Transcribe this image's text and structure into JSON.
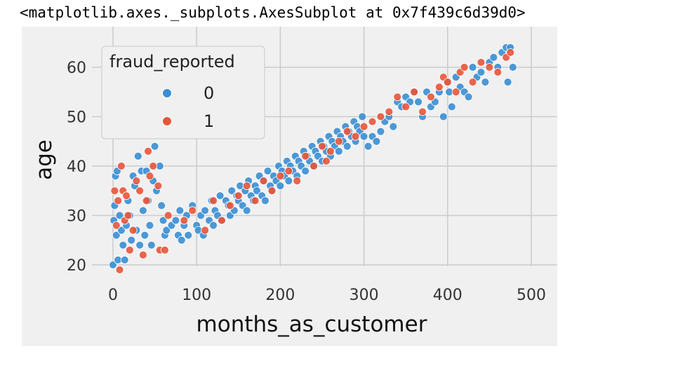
{
  "output_text": "<matplotlib.axes._subplots.AxesSubplot at 0x7f439c6d39d0>",
  "chart_data": {
    "type": "scatter",
    "title": "",
    "xlabel": "months_as_customer",
    "ylabel": "age",
    "xlim": [
      -20,
      500
    ],
    "ylim": [
      17,
      66
    ],
    "xticks": [
      0,
      100,
      200,
      300,
      400,
      500
    ],
    "yticks": [
      20,
      30,
      40,
      50,
      60
    ],
    "grid": true,
    "legend": {
      "title": "fraud_reported",
      "placement": "top-left",
      "entries": [
        "0",
        "1"
      ]
    },
    "colors": {
      "0": "#3a8ed3",
      "1": "#e8553a",
      "background": "#f0f0f0",
      "grid": "#cbcbcb"
    },
    "series": [
      {
        "name": "0",
        "points": [
          [
            0,
            20
          ],
          [
            1,
            29
          ],
          [
            2,
            32
          ],
          [
            3,
            38
          ],
          [
            4,
            26
          ],
          [
            5,
            39
          ],
          [
            6,
            21
          ],
          [
            8,
            30
          ],
          [
            10,
            27
          ],
          [
            12,
            24
          ],
          [
            14,
            21
          ],
          [
            16,
            28
          ],
          [
            18,
            33
          ],
          [
            20,
            30
          ],
          [
            22,
            25
          ],
          [
            24,
            38
          ],
          [
            26,
            36
          ],
          [
            28,
            27
          ],
          [
            30,
            42
          ],
          [
            32,
            24
          ],
          [
            34,
            39
          ],
          [
            36,
            31
          ],
          [
            38,
            26
          ],
          [
            40,
            39
          ],
          [
            42,
            33
          ],
          [
            44,
            28
          ],
          [
            46,
            24
          ],
          [
            48,
            37
          ],
          [
            50,
            44
          ],
          [
            52,
            35
          ],
          [
            56,
            40
          ],
          [
            58,
            32
          ],
          [
            60,
            29
          ],
          [
            62,
            26
          ],
          [
            64,
            27
          ],
          [
            70,
            28
          ],
          [
            75,
            29
          ],
          [
            78,
            26
          ],
          [
            80,
            31
          ],
          [
            82,
            25
          ],
          [
            85,
            28
          ],
          [
            88,
            30
          ],
          [
            90,
            26
          ],
          [
            95,
            32
          ],
          [
            100,
            28
          ],
          [
            102,
            27
          ],
          [
            105,
            30
          ],
          [
            108,
            26
          ],
          [
            110,
            31
          ],
          [
            115,
            29
          ],
          [
            118,
            33
          ],
          [
            120,
            28
          ],
          [
            122,
            31
          ],
          [
            125,
            30
          ],
          [
            128,
            34
          ],
          [
            130,
            29
          ],
          [
            135,
            33
          ],
          [
            138,
            32
          ],
          [
            140,
            30
          ],
          [
            142,
            35
          ],
          [
            145,
            31
          ],
          [
            148,
            34
          ],
          [
            150,
            33
          ],
          [
            152,
            36
          ],
          [
            155,
            32
          ],
          [
            158,
            35
          ],
          [
            160,
            31
          ],
          [
            162,
            37
          ],
          [
            165,
            34
          ],
          [
            168,
            33
          ],
          [
            170,
            36
          ],
          [
            172,
            35
          ],
          [
            175,
            38
          ],
          [
            178,
            34
          ],
          [
            180,
            37
          ],
          [
            182,
            33
          ],
          [
            185,
            39
          ],
          [
            188,
            36
          ],
          [
            190,
            35
          ],
          [
            192,
            38
          ],
          [
            195,
            37
          ],
          [
            198,
            40
          ],
          [
            200,
            36
          ],
          [
            202,
            39
          ],
          [
            205,
            38
          ],
          [
            208,
            41
          ],
          [
            210,
            37
          ],
          [
            212,
            40
          ],
          [
            215,
            39
          ],
          [
            218,
            42
          ],
          [
            220,
            38
          ],
          [
            222,
            41
          ],
          [
            225,
            40
          ],
          [
            228,
            43
          ],
          [
            230,
            39
          ],
          [
            232,
            42
          ],
          [
            235,
            41
          ],
          [
            238,
            44
          ],
          [
            240,
            40
          ],
          [
            242,
            43
          ],
          [
            245,
            42
          ],
          [
            248,
            45
          ],
          [
            250,
            41
          ],
          [
            252,
            44
          ],
          [
            255,
            43
          ],
          [
            258,
            46
          ],
          [
            260,
            42
          ],
          [
            262,
            45
          ],
          [
            265,
            44
          ],
          [
            268,
            47
          ],
          [
            270,
            43
          ],
          [
            272,
            46
          ],
          [
            275,
            45
          ],
          [
            278,
            48
          ],
          [
            280,
            44
          ],
          [
            282,
            47
          ],
          [
            285,
            46
          ],
          [
            288,
            49
          ],
          [
            290,
            45
          ],
          [
            292,
            48
          ],
          [
            295,
            47
          ],
          [
            298,
            50
          ],
          [
            300,
            46
          ],
          [
            305,
            44
          ],
          [
            310,
            46
          ],
          [
            315,
            45
          ],
          [
            320,
            47
          ],
          [
            325,
            49
          ],
          [
            330,
            50
          ],
          [
            335,
            48
          ],
          [
            340,
            53
          ],
          [
            345,
            52
          ],
          [
            350,
            54
          ],
          [
            355,
            53
          ],
          [
            360,
            55
          ],
          [
            365,
            53
          ],
          [
            370,
            50
          ],
          [
            375,
            55
          ],
          [
            380,
            52
          ],
          [
            385,
            53
          ],
          [
            390,
            55
          ],
          [
            395,
            50
          ],
          [
            400,
            57
          ],
          [
            402,
            55
          ],
          [
            405,
            52
          ],
          [
            410,
            58
          ],
          [
            415,
            56
          ],
          [
            420,
            55
          ],
          [
            425,
            54
          ],
          [
            430,
            60
          ],
          [
            435,
            58
          ],
          [
            440,
            59
          ],
          [
            445,
            57
          ],
          [
            450,
            61
          ],
          [
            455,
            62
          ],
          [
            460,
            60
          ],
          [
            465,
            63
          ],
          [
            470,
            64
          ],
          [
            472,
            57
          ],
          [
            475,
            64
          ],
          [
            478,
            60
          ]
        ]
      },
      {
        "name": "1",
        "points": [
          [
            2,
            35
          ],
          [
            4,
            28
          ],
          [
            6,
            33
          ],
          [
            8,
            19
          ],
          [
            10,
            40
          ],
          [
            12,
            35
          ],
          [
            14,
            29
          ],
          [
            16,
            34
          ],
          [
            18,
            30
          ],
          [
            20,
            23
          ],
          [
            24,
            27
          ],
          [
            28,
            37
          ],
          [
            32,
            35
          ],
          [
            36,
            22
          ],
          [
            40,
            33
          ],
          [
            42,
            43
          ],
          [
            44,
            38
          ],
          [
            48,
            40
          ],
          [
            54,
            36
          ],
          [
            56,
            23
          ],
          [
            62,
            23
          ],
          [
            66,
            30
          ],
          [
            85,
            29
          ],
          [
            95,
            31
          ],
          [
            110,
            27
          ],
          [
            120,
            33
          ],
          [
            130,
            29
          ],
          [
            140,
            32
          ],
          [
            150,
            34
          ],
          [
            160,
            36
          ],
          [
            170,
            33
          ],
          [
            180,
            37
          ],
          [
            190,
            35
          ],
          [
            200,
            38
          ],
          [
            210,
            39
          ],
          [
            220,
            37
          ],
          [
            230,
            42
          ],
          [
            240,
            40
          ],
          [
            250,
            44
          ],
          [
            255,
            41
          ],
          [
            260,
            43
          ],
          [
            270,
            45
          ],
          [
            280,
            47
          ],
          [
            290,
            46
          ],
          [
            300,
            48
          ],
          [
            310,
            49
          ],
          [
            320,
            50
          ],
          [
            330,
            51
          ],
          [
            340,
            54
          ],
          [
            350,
            52
          ],
          [
            360,
            55
          ],
          [
            370,
            51
          ],
          [
            380,
            54
          ],
          [
            390,
            56
          ],
          [
            395,
            58
          ],
          [
            400,
            57
          ],
          [
            410,
            55
          ],
          [
            415,
            59
          ],
          [
            420,
            60
          ],
          [
            430,
            57
          ],
          [
            440,
            61
          ],
          [
            450,
            60
          ],
          [
            460,
            59
          ],
          [
            470,
            62
          ],
          [
            475,
            63
          ]
        ]
      }
    ]
  }
}
